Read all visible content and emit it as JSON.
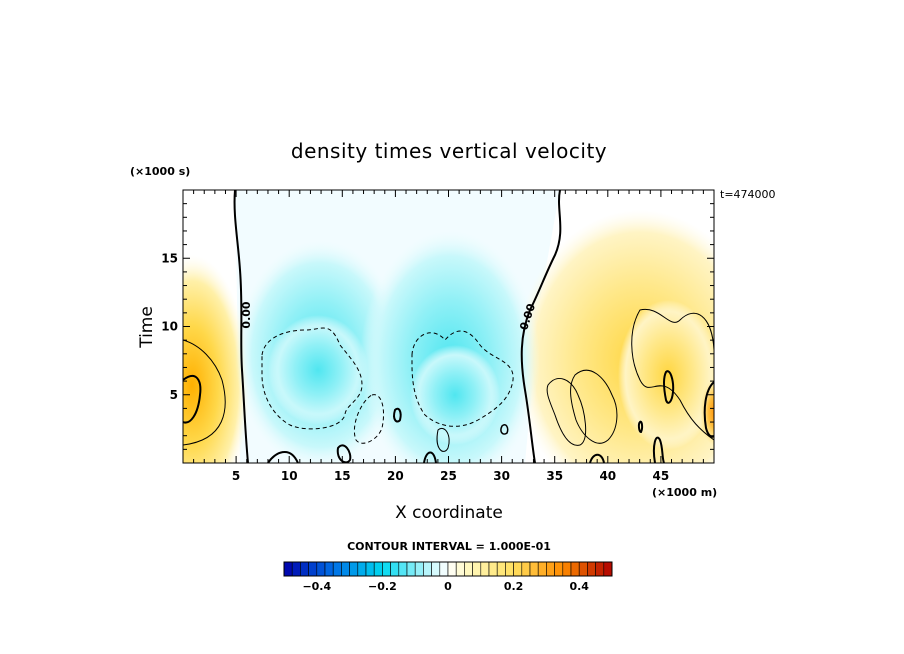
{
  "chart_data": {
    "type": "heatmap",
    "title": "density times vertical velocity",
    "xlabel": "X coordinate",
    "ylabel": "Time",
    "x_units": "(×1000 m)",
    "y_units": "(×1000 s)",
    "time_stamp": "t=474000",
    "xlim": [
      0,
      50
    ],
    "ylim": [
      0,
      20
    ],
    "x_ticks": [
      5,
      10,
      15,
      20,
      25,
      30,
      35,
      40,
      45
    ],
    "y_ticks": [
      5,
      10,
      15
    ],
    "contour_interval_text": "CONTOUR INTERVAL = 1.000E-01",
    "contour_line_labels": [
      "0.00",
      "0.00"
    ],
    "color_scale": {
      "min": -0.5,
      "max": 0.5,
      "tick_values": [
        -0.4,
        -0.2,
        0,
        0.2,
        0.4
      ],
      "tick_labels": [
        "−0.4",
        "−0.2",
        "0",
        "0.2",
        "0.4"
      ]
    },
    "features": [
      {
        "sign": "positive",
        "x": 1.5,
        "y": 6,
        "peak": 0.25
      },
      {
        "sign": "negative",
        "x": 14,
        "y": 7,
        "peak": -0.2
      },
      {
        "sign": "negative",
        "x": 25,
        "y": 5,
        "peak": -0.2
      },
      {
        "sign": "positive",
        "x": 46,
        "y": 6,
        "peak": 0.2
      },
      {
        "sign": "positive",
        "x": 50,
        "y": 4,
        "peak": 0.3
      }
    ]
  },
  "colors": {
    "negative_strong": "#0000aa",
    "negative_mid": "#00d8f0",
    "neutral": "#ffffff",
    "positive_mid": "#ffe060",
    "positive_strong": "#b00000"
  }
}
